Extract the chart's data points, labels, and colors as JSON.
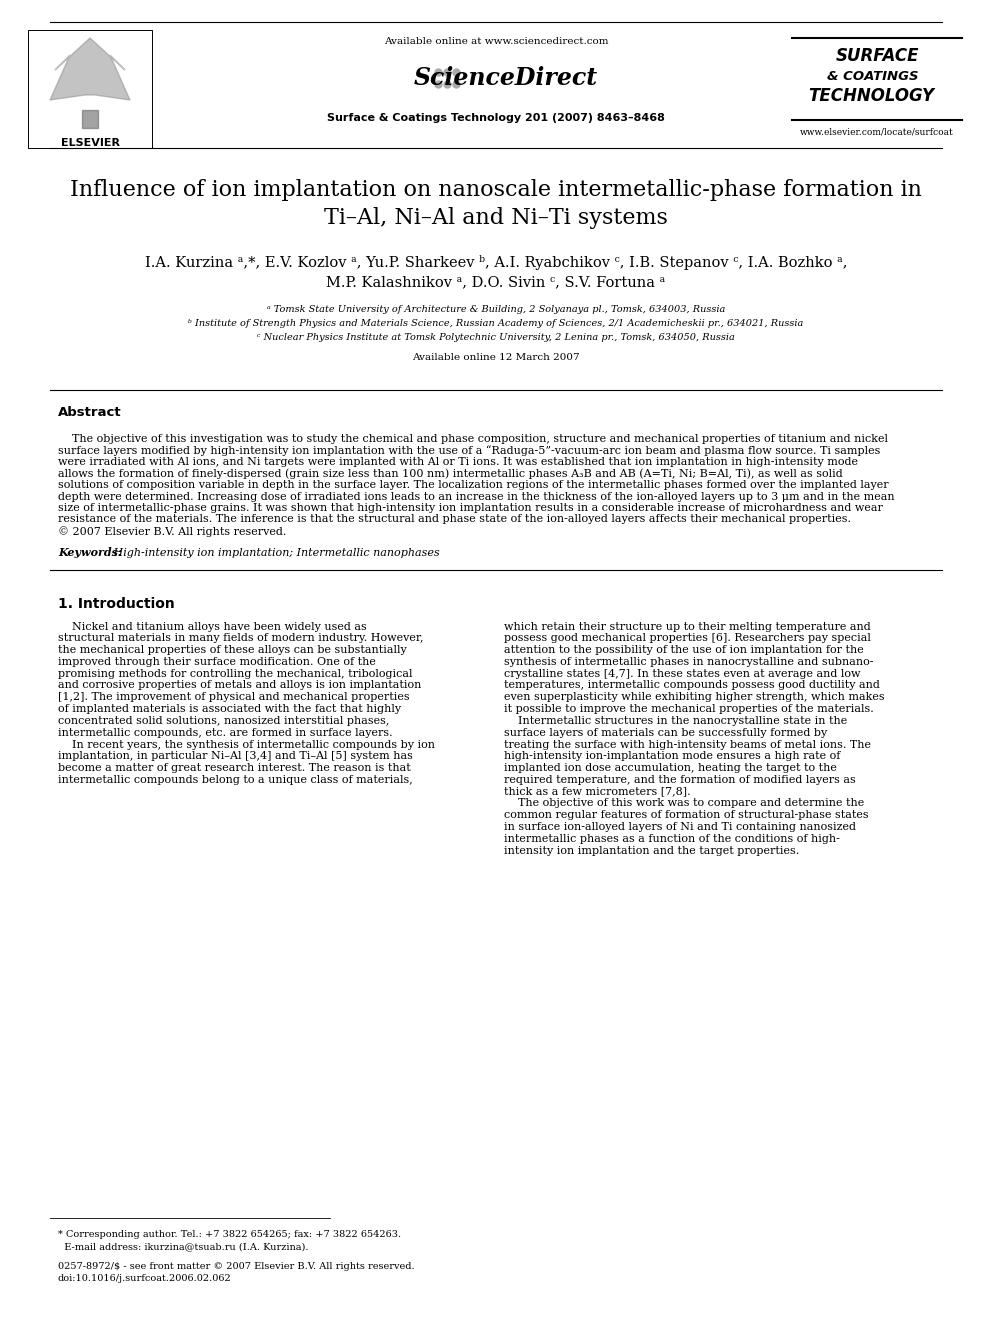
{
  "bg_color": "#ffffff",
  "header_available": "Available online at www.sciencedirect.com",
  "header_journal": "Surface & Coatings Technology 201 (2007) 8463–8468",
  "header_website": "www.elsevier.com/locate/surfcoat",
  "title_line1": "Influence of ion implantation on nanoscale intermetallic-phase formation in",
  "title_line2": "Ti–Al, Ni–Al and Ni–Ti systems",
  "author_line1": "I.A. Kurzina ᵃ,*, E.V. Kozlov ᵃ, Yu.P. Sharkeev ᵇ, A.I. Ryabchikov ᶜ, I.B. Stepanov ᶜ, I.A. Bozhko ᵃ,",
  "author_line2": "M.P. Kalashnikov ᵃ, D.O. Sivin ᶜ, S.V. Fortuna ᵃ",
  "affiliations": [
    "ᵃ Tomsk State University of Architecture & Building, 2 Solyanaya pl., Tomsk, 634003, Russia",
    "ᵇ Institute of Strength Physics and Materials Science, Russian Academy of Sciences, 2/1 Academicheskii pr., 634021, Russia",
    "ᶜ Nuclear Physics Institute at Tomsk Polytechnic University, 2 Lenina pr., Tomsk, 634050, Russia"
  ],
  "available_online_date": "Available online 12 March 2007",
  "abstract_title": "Abstract",
  "abstract_lines": [
    "    The objective of this investigation was to study the chemical and phase composition, structure and mechanical properties of titanium and nickel",
    "surface layers modified by high-intensity ion implantation with the use of a “Raduga-5”-vacuum-arc ion beam and plasma flow source. Ti samples",
    "were irradiated with Al ions, and Ni targets were implanted with Al or Ti ions. It was established that ion implantation in high-intensity mode",
    "allows the formation of finely-dispersed (grain size less than 100 nm) intermetallic phases A₃B and AB (A=Ti, Ni; B=Al, Ti), as well as solid",
    "solutions of composition variable in depth in the surface layer. The localization regions of the intermetallic phases formed over the implanted layer",
    "depth were determined. Increasing dose of irradiated ions leads to an increase in the thickness of the ion-alloyed layers up to 3 μm and in the mean",
    "size of intermetallic-phase grains. It was shown that high-intensity ion implantation results in a considerable increase of microhardness and wear",
    "resistance of the materials. The inference is that the structural and phase state of the ion-alloyed layers affects their mechanical properties.",
    "© 2007 Elsevier B.V. All rights reserved."
  ],
  "keywords_label": "Keywords:",
  "keywords_text": " High-intensity ion implantation; Intermetallic nanophases",
  "section1_title": "1. Introduction",
  "col1_lines": [
    "    Nickel and titanium alloys have been widely used as",
    "structural materials in many fields of modern industry. However,",
    "the mechanical properties of these alloys can be substantially",
    "improved through their surface modification. One of the",
    "promising methods for controlling the mechanical, tribological",
    "and corrosive properties of metals and alloys is ion implantation",
    "[1,2]. The improvement of physical and mechanical properties",
    "of implanted materials is associated with the fact that highly",
    "concentrated solid solutions, nanosized interstitial phases,",
    "intermetallic compounds, etc. are formed in surface layers.",
    "    In recent years, the synthesis of intermetallic compounds by ion",
    "implantation, in particular Ni–Al [3,4] and Ti–Al [5] system has",
    "become a matter of great research interest. The reason is that",
    "intermetallic compounds belong to a unique class of materials,"
  ],
  "col2_lines": [
    "which retain their structure up to their melting temperature and",
    "possess good mechanical properties [6]. Researchers pay special",
    "attention to the possibility of the use of ion implantation for the",
    "synthesis of intermetallic phases in nanocrystalline and subnano-",
    "crystalline states [4,7]. In these states even at average and low",
    "temperatures, intermetallic compounds possess good ductility and",
    "even superplasticity while exhibiting higher strength, which makes",
    "it possible to improve the mechanical properties of the materials.",
    "    Intermetallic structures in the nanocrystalline state in the",
    "surface layers of materials can be successfully formed by",
    "treating the surface with high-intensity beams of metal ions. The",
    "high-intensity ion-implantation mode ensures a high rate of",
    "implanted ion dose accumulation, heating the target to the",
    "required temperature, and the formation of modified layers as",
    "thick as a few micrometers [7,8].",
    "    The objective of this work was to compare and determine the",
    "common regular features of formation of structural-phase states",
    "in surface ion-alloyed layers of Ni and Ti containing nanosized",
    "intermetallic phases as a function of the conditions of high-",
    "intensity ion implantation and the target properties."
  ],
  "footnote1a": "* Corresponding author. Tel.: +7 3822 654265; fax: +7 3822 654263.",
  "footnote1b": "  E-mail address: ikurzina@tsuab.ru (I.A. Kurzina).",
  "footnote2a": "0257-8972/$ - see front matter © 2007 Elsevier B.V. All rights reserved.",
  "footnote2b": "doi:10.1016/j.surfcoat.2006.02.062"
}
